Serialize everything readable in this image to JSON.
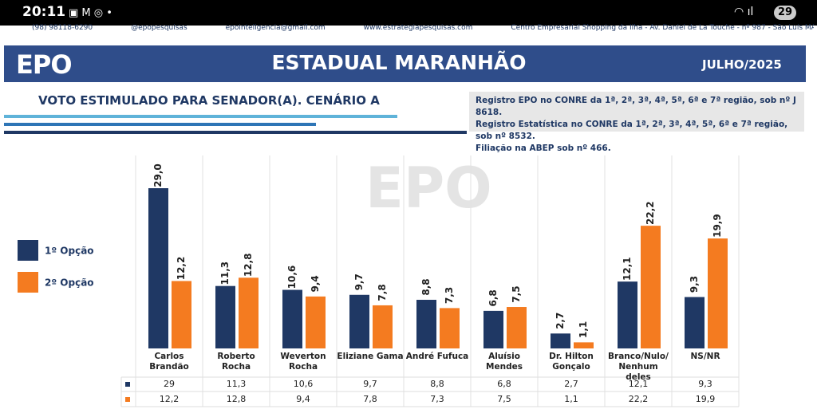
{
  "status_bar": {
    "time": "20:11",
    "battery": "29"
  },
  "contact_strip": [
    "(98) 98118-6290",
    "@epopesquisas",
    "epointeligencia@gmail.com",
    "www.estrategiapesquisas.com",
    "Centro Empresarial Shopping da Ilha - Av. Daniel de La Touche - nº 987 - São Luís MA."
  ],
  "header": {
    "logo": "EPO",
    "title": "ESTADUAL MARANHÃO",
    "date": "JULHO/2025"
  },
  "registry": [
    "Registro EPO no CONRE da 1ª, 2ª, 3ª, 4ª, 5ª, 6ª e 7ª região, sob nº J 8618.",
    "Registro Estatística no CONRE da 1ª, 2ª, 3ª, 4ª, 5ª, 6ª e 7ª região, sob nº 8532.",
    "Filiação na ABEP sob nº 466."
  ],
  "chart_data": {
    "type": "bar",
    "title": "VOTO ESTIMULADO PARA SENADOR(A). CENÁRIO A",
    "watermark": "EPO",
    "categories": [
      "Carlos Brandão",
      "Roberto Rocha",
      "Weverton\nRocha",
      "Eliziane Gama",
      "André Fufuca",
      "Aluísio Mendes",
      "Dr. Hilton\nGonçalo",
      "Branco/Nulo/\nNenhum deles",
      "NS/NR"
    ],
    "series": [
      {
        "name": "1º Opção",
        "color": "#1f3864",
        "values": [
          29,
          11.3,
          10.6,
          9.7,
          8.8,
          6.8,
          2.7,
          12.1,
          9.3
        ],
        "value_labels": [
          "29,0",
          "11,3",
          "10,6",
          "9,7",
          "8,8",
          "6,8",
          "2,7",
          "12,1",
          "9,3"
        ],
        "table_labels": [
          "29",
          "11,3",
          "10,6",
          "9,7",
          "8,8",
          "6,8",
          "2,7",
          "12,1",
          "9,3"
        ]
      },
      {
        "name": "2º Opção",
        "color": "#f47b20",
        "values": [
          12.2,
          12.8,
          9.4,
          7.8,
          7.3,
          7.5,
          1.1,
          22.2,
          19.9
        ],
        "value_labels": [
          "12,2",
          "12,8",
          "9,4",
          "7,8",
          "7,3",
          "7,5",
          "1,1",
          "22,2",
          "19,9"
        ],
        "table_labels": [
          "12,2",
          "12,8",
          "9,4",
          "7,8",
          "7,3",
          "7,5",
          "1,1",
          "22,2",
          "19,9"
        ]
      }
    ],
    "legend": "left"
  }
}
